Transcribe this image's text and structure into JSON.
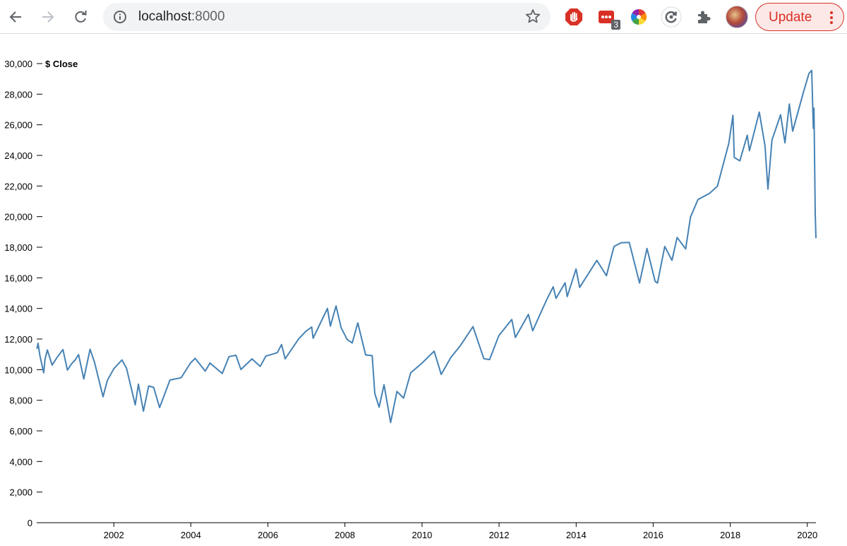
{
  "browser": {
    "url_host": "localhost",
    "url_port": ":8000",
    "extension_badge": "3",
    "update_label": "Update",
    "icons": [
      "back-arrow-icon",
      "forward-arrow-icon",
      "reload-icon",
      "info-icon",
      "star-icon",
      "stop-hand-icon",
      "dots-extension-icon",
      "color-wheel-icon",
      "sync-icon",
      "puzzle-icon",
      "kebab-menu-icon"
    ]
  },
  "colors": {
    "line": "#4682b4",
    "update_red": "#d93025"
  },
  "chart_data": {
    "type": "line",
    "ylabel": "$ Close",
    "ylim": [
      0,
      30000
    ],
    "xlim": [
      "2000-01-01",
      "2020-03-23"
    ],
    "y_ticks": [
      "0",
      "2,000",
      "4,000",
      "6,000",
      "8,000",
      "10,000",
      "12,000",
      "14,000",
      "16,000",
      "18,000",
      "20,000",
      "22,000",
      "24,000",
      "26,000",
      "28,000",
      "30,000"
    ],
    "x_ticks": [
      "2002",
      "2004",
      "2006",
      "2008",
      "2010",
      "2012",
      "2014",
      "2016",
      "2018",
      "2020"
    ],
    "series": [
      {
        "points": [
          [
            "2000-01-03",
            11357
          ],
          [
            "2000-01-14",
            11723
          ],
          [
            "2000-02-01",
            10900
          ],
          [
            "2000-03-07",
            9796
          ],
          [
            "2000-03-20",
            10680
          ],
          [
            "2000-04-11",
            11287
          ],
          [
            "2000-05-26",
            10300
          ],
          [
            "2000-07-14",
            10812
          ],
          [
            "2000-09-06",
            11310
          ],
          [
            "2000-10-18",
            9975
          ],
          [
            "2000-11-30",
            10414
          ],
          [
            "2001-01-02",
            10646
          ],
          [
            "2001-02-01",
            10983
          ],
          [
            "2001-03-22",
            9389
          ],
          [
            "2001-05-21",
            11337
          ],
          [
            "2001-07-01",
            10500
          ],
          [
            "2001-09-21",
            8236
          ],
          [
            "2001-11-01",
            9300
          ],
          [
            "2002-01-02",
            10073
          ],
          [
            "2002-03-19",
            10635
          ],
          [
            "2002-05-01",
            10100
          ],
          [
            "2002-07-23",
            7702
          ],
          [
            "2002-08-22",
            9053
          ],
          [
            "2002-10-09",
            7286
          ],
          [
            "2002-11-27",
            8931
          ],
          [
            "2003-01-14",
            8842
          ],
          [
            "2003-03-11",
            7524
          ],
          [
            "2003-06-17",
            9323
          ],
          [
            "2003-10-01",
            9469
          ],
          [
            "2003-12-31",
            10454
          ],
          [
            "2004-02-11",
            10737
          ],
          [
            "2004-05-17",
            9906
          ],
          [
            "2004-07-01",
            10430
          ],
          [
            "2004-10-25",
            9749
          ],
          [
            "2004-12-28",
            10854
          ],
          [
            "2005-03-04",
            10940
          ],
          [
            "2005-04-20",
            10012
          ],
          [
            "2005-08-03",
            10705
          ],
          [
            "2005-10-20",
            10216
          ],
          [
            "2005-12-12",
            10883
          ],
          [
            "2006-03-31",
            11109
          ],
          [
            "2006-05-10",
            11642
          ],
          [
            "2006-06-13",
            10706
          ],
          [
            "2006-10-19",
            12011
          ],
          [
            "2006-12-27",
            12510
          ],
          [
            "2007-02-20",
            12786
          ],
          [
            "2007-03-05",
            12050
          ],
          [
            "2007-07-19",
            14000
          ],
          [
            "2007-08-16",
            12846
          ],
          [
            "2007-10-09",
            14164
          ],
          [
            "2007-11-26",
            12743
          ],
          [
            "2008-01-22",
            11971
          ],
          [
            "2008-03-10",
            11740
          ],
          [
            "2008-05-02",
            13058
          ],
          [
            "2008-07-15",
            10962
          ],
          [
            "2008-09-15",
            10917
          ],
          [
            "2008-10-10",
            8451
          ],
          [
            "2008-11-20",
            7552
          ],
          [
            "2009-01-06",
            9015
          ],
          [
            "2009-03-09",
            6547
          ],
          [
            "2009-05-08",
            8574
          ],
          [
            "2009-07-10",
            8146
          ],
          [
            "2009-09-15",
            9791
          ],
          [
            "2009-12-31",
            10428
          ],
          [
            "2010-04-26",
            11205
          ],
          [
            "2010-07-02",
            9686
          ],
          [
            "2010-09-30",
            10788
          ],
          [
            "2010-12-31",
            11577
          ],
          [
            "2011-04-29",
            12810
          ],
          [
            "2011-08-10",
            10719
          ],
          [
            "2011-10-03",
            10655
          ],
          [
            "2011-12-30",
            12217
          ],
          [
            "2012-05-01",
            13279
          ],
          [
            "2012-06-04",
            12101
          ],
          [
            "2012-10-05",
            13610
          ],
          [
            "2012-11-15",
            12542
          ],
          [
            "2013-03-28",
            14578
          ],
          [
            "2013-05-28",
            15409
          ],
          [
            "2013-06-24",
            14659
          ],
          [
            "2013-09-18",
            15676
          ],
          [
            "2013-10-08",
            14776
          ],
          [
            "2013-12-31",
            16576
          ],
          [
            "2014-02-03",
            15372
          ],
          [
            "2014-07-16",
            17138
          ],
          [
            "2014-10-15",
            16141
          ],
          [
            "2014-12-26",
            18053
          ],
          [
            "2015-03-02",
            18288
          ],
          [
            "2015-05-19",
            18312
          ],
          [
            "2015-08-25",
            15666
          ],
          [
            "2015-11-03",
            17918
          ],
          [
            "2016-01-20",
            15766
          ],
          [
            "2016-02-11",
            15660
          ],
          [
            "2016-04-20",
            18053
          ],
          [
            "2016-06-27",
            17140
          ],
          [
            "2016-08-15",
            18636
          ],
          [
            "2016-11-04",
            17888
          ],
          [
            "2016-12-20",
            19974
          ],
          [
            "2017-03-01",
            21115
          ],
          [
            "2017-06-19",
            21528
          ],
          [
            "2017-09-01",
            21988
          ],
          [
            "2017-12-18",
            24792
          ],
          [
            "2018-01-26",
            26617
          ],
          [
            "2018-02-08",
            23860
          ],
          [
            "2018-04-02",
            23644
          ],
          [
            "2018-06-11",
            25322
          ],
          [
            "2018-07-02",
            24307
          ],
          [
            "2018-10-03",
            26828
          ],
          [
            "2018-11-26",
            24640
          ],
          [
            "2018-12-24",
            21792
          ],
          [
            "2019-01-31",
            25000
          ],
          [
            "2019-04-23",
            26656
          ],
          [
            "2019-06-03",
            24816
          ],
          [
            "2019-07-15",
            27359
          ],
          [
            "2019-08-15",
            25579
          ],
          [
            "2019-11-27",
            28164
          ],
          [
            "2020-01-17",
            29348
          ],
          [
            "2020-02-12",
            29551
          ],
          [
            "2020-02-27",
            25766
          ],
          [
            "2020-03-04",
            27090
          ],
          [
            "2020-03-16",
            20188
          ],
          [
            "2020-03-23",
            18591
          ]
        ]
      }
    ]
  }
}
